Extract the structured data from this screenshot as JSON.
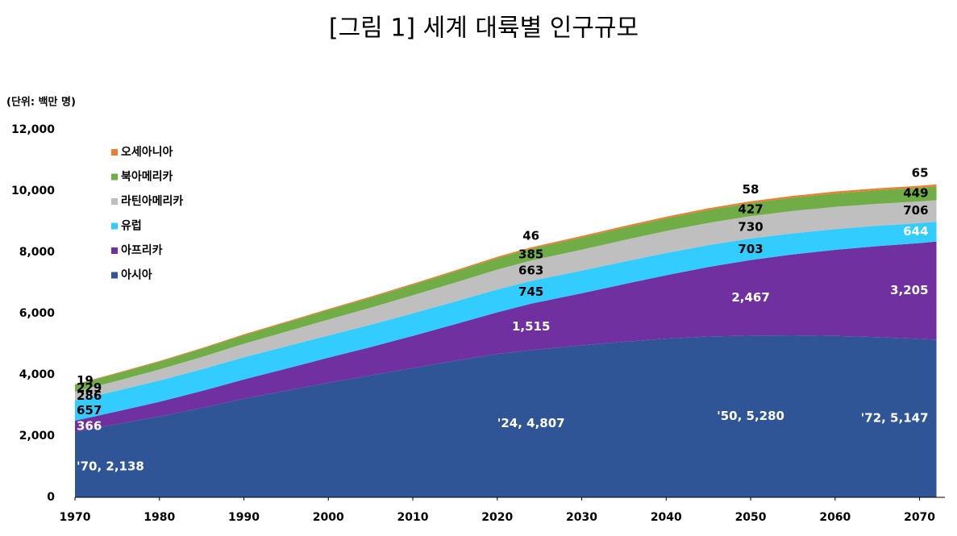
{
  "chart_data": {
    "type": "stacked_area",
    "title": "[그림 1] 세계 대륙별 인구규모",
    "y_label": "(단위: 백만 명)",
    "x": [
      1970,
      1975,
      1980,
      1985,
      1990,
      1995,
      2000,
      2005,
      2010,
      2015,
      2020,
      2024,
      2030,
      2035,
      2040,
      2045,
      2050,
      2055,
      2060,
      2065,
      2070,
      2072
    ],
    "xlim": [
      1970,
      2073
    ],
    "xticks": [
      1970,
      1980,
      1990,
      2000,
      2010,
      2020,
      2030,
      2040,
      2050,
      2060,
      2070
    ],
    "ylim": [
      0,
      12000
    ],
    "yticks": [
      0,
      {
        "value": 2000,
        "label": "2,000"
      },
      {
        "value": 4000,
        "label": "4,000"
      },
      {
        "value": 6000,
        "label": "6,000"
      },
      {
        "value": 8000,
        "label": "8,000"
      },
      {
        "value": 10000,
        "label": "10,000"
      },
      {
        "value": 12000,
        "label": "12,000"
      }
    ],
    "legend": "upper left",
    "series": [
      {
        "name": "아시아",
        "color": "#2f5597",
        "values": [
          2138,
          2390,
          2640,
          2920,
          3220,
          3480,
          3740,
          3980,
          4220,
          4460,
          4680,
          4807,
          4960,
          5080,
          5180,
          5250,
          5280,
          5290,
          5270,
          5230,
          5170,
          5147
        ],
        "value_labels": [
          "'70, 2,138",
          null,
          null,
          null,
          null,
          null,
          null,
          null,
          null,
          null,
          null,
          "'24, 4,807",
          null,
          null,
          null,
          null,
          "'50, 5,280",
          null,
          null,
          null,
          null,
          "'72, 5,147"
        ]
      },
      {
        "name": "아프리카",
        "color": "#7030a0",
        "values": [
          366,
          415,
          478,
          550,
          630,
          720,
          818,
          925,
          1050,
          1190,
          1360,
          1515,
          1700,
          1880,
          2070,
          2270,
          2467,
          2640,
          2810,
          2970,
          3130,
          3205
        ],
        "value_labels": [
          "366",
          null,
          null,
          null,
          null,
          null,
          null,
          null,
          null,
          null,
          null,
          "1,515",
          null,
          null,
          null,
          null,
          "2,467",
          null,
          null,
          null,
          null,
          "3,205"
        ]
      },
      {
        "name": "유럽",
        "color": "#33ccff",
        "values": [
          657,
          677,
          694,
          708,
          721,
          727,
          726,
          729,
          736,
          743,
          746,
          745,
          740,
          733,
          726,
          715,
          703,
          690,
          677,
          664,
          650,
          644
        ],
        "value_labels": [
          "657",
          null,
          null,
          null,
          null,
          null,
          null,
          null,
          null,
          null,
          null,
          "745",
          null,
          null,
          null,
          null,
          "703",
          null,
          null,
          null,
          null,
          "644"
        ]
      },
      {
        "name": "라틴아메리카",
        "color": "#bfbfbf",
        "values": [
          286,
          322,
          361,
          401,
          442,
          481,
          520,
          556,
          589,
          618,
          648,
          663,
          686,
          704,
          717,
          726,
          730,
          730,
          725,
          718,
          710,
          706
        ],
        "value_labels": [
          "286",
          null,
          null,
          null,
          null,
          null,
          null,
          null,
          null,
          null,
          null,
          "663",
          null,
          null,
          null,
          null,
          "730",
          null,
          null,
          null,
          null,
          "706"
        ]
      },
      {
        "name": "북아메리카",
        "color": "#70ad47",
        "values": [
          229,
          240,
          255,
          268,
          281,
          298,
          313,
          328,
          343,
          357,
          373,
          385,
          397,
          406,
          414,
          421,
          427,
          433,
          438,
          443,
          447,
          449
        ],
        "value_labels": [
          "229",
          null,
          null,
          null,
          null,
          null,
          null,
          null,
          null,
          null,
          null,
          "385",
          null,
          null,
          null,
          null,
          "427",
          null,
          null,
          null,
          null,
          "449"
        ]
      },
      {
        "name": "오세아니아",
        "color": "#ed7d31",
        "values": [
          19,
          21,
          23,
          25,
          27,
          29,
          31,
          34,
          37,
          40,
          44,
          46,
          49,
          52,
          54,
          56,
          58,
          60,
          62,
          63,
          64,
          65
        ],
        "value_labels": [
          "19",
          null,
          null,
          null,
          null,
          null,
          null,
          null,
          null,
          null,
          null,
          "46",
          null,
          null,
          null,
          null,
          "58",
          null,
          null,
          null,
          null,
          "65"
        ]
      }
    ]
  }
}
